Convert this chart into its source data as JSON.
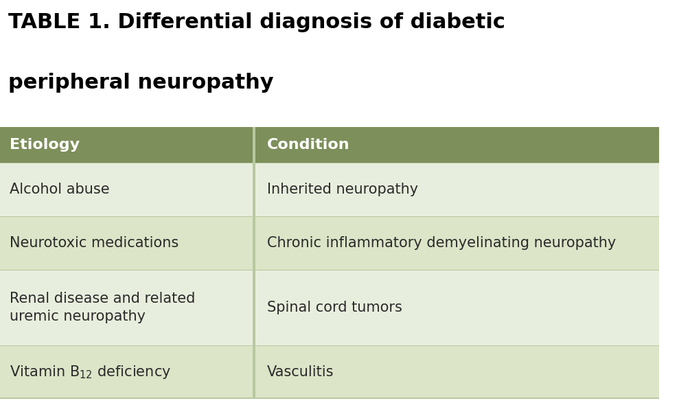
{
  "title_line1": "TABLE 1. Differential diagnosis of diabetic",
  "title_line2": "peripheral neuropathy",
  "title_fontsize": 22,
  "title_color": "#000000",
  "header_bg": "#7d8f5a",
  "header_text_color": "#ffffff",
  "header_fontsize": 16,
  "header_col1": "Etiology",
  "header_col2": "Condition",
  "row_bg_even": "#dce5c8",
  "row_bg_odd": "#e8eedd",
  "divider_color": "#b8c8a0",
  "body_fontsize": 15,
  "body_text_color": "#2a2a2a",
  "col_split": 0.385,
  "rows": [
    [
      "Alcohol abuse",
      "Inherited neuropathy"
    ],
    [
      "Neurotoxic medications",
      "Chronic inflammatory demyelinating neuropathy"
    ],
    [
      "Renal disease and related\nuremic neuropathy",
      "Spinal cord tumors"
    ],
    [
      "Vitamin B$_{12}$ deficiency",
      "Vasculitis"
    ]
  ],
  "bg_color": "#ffffff",
  "fig_width": 10.05,
  "fig_height": 5.87,
  "dpi": 100
}
